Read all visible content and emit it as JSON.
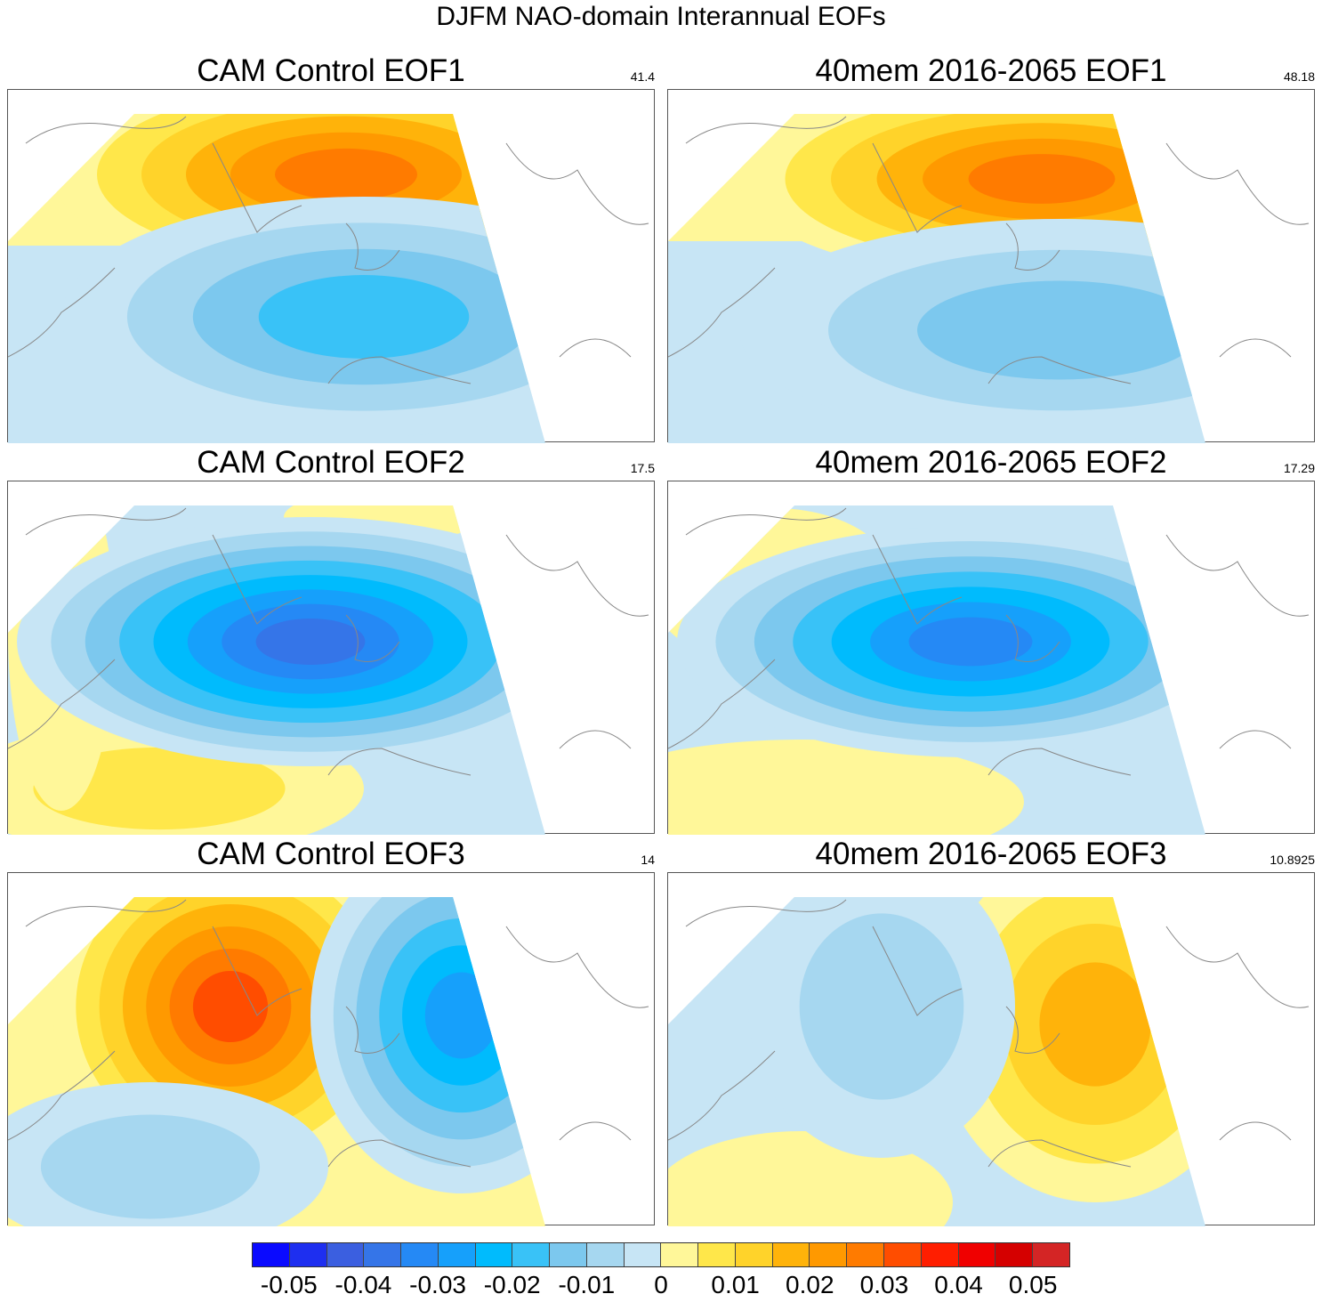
{
  "title": "DJFM NAO-domain Interannual EOFs",
  "panels": [
    {
      "title": "CAM Control EOF1",
      "value": "41.4"
    },
    {
      "title": "40mem 2016-2065 EOF1",
      "value": "48.18"
    },
    {
      "title": "CAM Control EOF2",
      "value": "17.5"
    },
    {
      "title": "40mem 2016-2065 EOF2",
      "value": "17.29"
    },
    {
      "title": "CAM Control EOF3",
      "value": "14"
    },
    {
      "title": "40mem 2016-2065 EOF3",
      "value": "10.8925"
    }
  ],
  "colorbar": {
    "labels": [
      "-0.05",
      "-0.04",
      "-0.03",
      "-0.02",
      "-0.01",
      "0",
      "0.01",
      "0.02",
      "0.03",
      "0.04",
      "0.05"
    ],
    "colors": [
      "#0a0aff",
      "#1e2ff0",
      "#3b5fe0",
      "#3575e8",
      "#2589f5",
      "#16a0fb",
      "#00bbfd",
      "#39c2f7",
      "#7cc8ee",
      "#a6d7f0",
      "#c7e5f5",
      "#fff799",
      "#ffe74a",
      "#ffd32a",
      "#ffb30a",
      "#ff9900",
      "#ff7b00",
      "#ff4d00",
      "#ff1e00",
      "#f00000",
      "#d50000",
      "#d42525"
    ]
  }
}
